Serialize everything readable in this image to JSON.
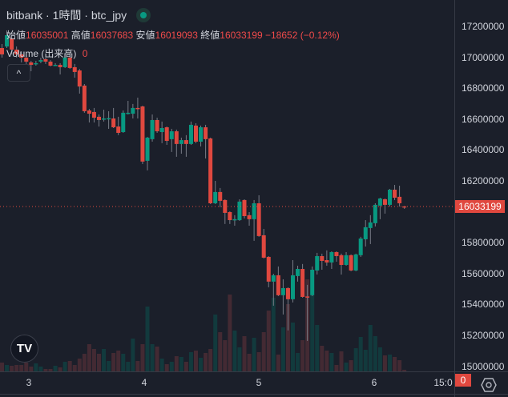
{
  "header": {
    "title": "bitbank · 1時間 · btc_jpy",
    "status_icon": "live-status-dot-icon",
    "open_label": "始値",
    "open": "16035001",
    "high_label": "高値",
    "high": "16037683",
    "low_label": "安値",
    "low": "16019093",
    "close_label": "終値",
    "close": "16033199",
    "change": "−18652 (−0.12%)",
    "volume_label": "Volume (出来高)",
    "volume_value": "0",
    "collapse_icon": "^"
  },
  "price_axis": {
    "labels": [
      "17200000",
      "17000000",
      "16800000",
      "16600000",
      "16400000",
      "16200000",
      "15800000",
      "15600000",
      "15400000",
      "15200000",
      "15000000"
    ],
    "current_price_label": "16033199",
    "volume_label": "0"
  },
  "time_axis": {
    "labels": [
      "3",
      "4",
      "5",
      "6",
      "15:0"
    ]
  },
  "logo": "TV",
  "colors": {
    "up": "#089981",
    "down": "#e0483f",
    "up_vol": "#123a3d",
    "down_vol": "#432a33",
    "bg": "#1b1f2a"
  },
  "chart_data": {
    "type": "candlestick",
    "title": "bitbank · 1時間 · btc_jpy",
    "price_unit": "thousand JPY",
    "ylim": [
      14990,
      17370
    ],
    "yticks": [
      17200,
      17000,
      16800,
      16600,
      16400,
      16200,
      16000,
      15800,
      15600,
      15400,
      15200,
      15000
    ],
    "xticks": [
      {
        "label": "3",
        "index": 5.6
      },
      {
        "label": "4",
        "index": 29.4
      },
      {
        "label": "5",
        "index": 53.1
      },
      {
        "label": "6",
        "index": 76.9
      },
      {
        "label": "15:0",
        "index": 91
      }
    ],
    "last_price": 16033.199,
    "ohlc": [
      [
        17060,
        17086,
        16998,
        17019
      ],
      [
        17070,
        17174,
        17060,
        17143
      ],
      [
        17122,
        17143,
        17019,
        17050
      ],
      [
        17050,
        17070,
        16998,
        17019
      ],
      [
        17019,
        17039,
        16967,
        16998
      ],
      [
        16998,
        17019,
        16957,
        16972
      ],
      [
        16967,
        16977,
        16910,
        16951
      ],
      [
        16957,
        16977,
        16946,
        16962
      ],
      [
        16972,
        16998,
        16962,
        16982
      ],
      [
        16988,
        16998,
        16957,
        16972
      ],
      [
        16972,
        16982,
        16941,
        16946
      ],
      [
        16946,
        16962,
        16946,
        16951
      ],
      [
        16951,
        16962,
        16889,
        16936
      ],
      [
        16936,
        17029,
        16931,
        16998
      ],
      [
        16998,
        17029,
        16925,
        16931
      ],
      [
        16936,
        16957,
        16868,
        16905
      ],
      [
        16915,
        16925,
        16765,
        16811
      ],
      [
        16817,
        16827,
        16641,
        16651
      ],
      [
        16656,
        16666,
        16578,
        16635
      ],
      [
        16646,
        16672,
        16578,
        16609
      ],
      [
        16615,
        16630,
        16552,
        16594
      ],
      [
        16599,
        16661,
        16584,
        16604
      ],
      [
        16604,
        16651,
        16537,
        16606
      ],
      [
        16604,
        16672,
        16542,
        16547
      ],
      [
        16552,
        16615,
        16496,
        16511
      ],
      [
        16516,
        16656,
        16511,
        16641
      ],
      [
        16635,
        16718,
        16630,
        16641
      ],
      [
        16635,
        16698,
        16604,
        16672
      ],
      [
        16672,
        16739,
        16604,
        16666
      ],
      [
        16682,
        16687,
        16309,
        16325
      ],
      [
        16330,
        16485,
        16268,
        16480
      ],
      [
        16470,
        16630,
        16454,
        16594
      ],
      [
        16594,
        16609,
        16511,
        16521
      ],
      [
        16516,
        16584,
        16444,
        16542
      ],
      [
        16547,
        16552,
        16433,
        16459
      ],
      [
        16470,
        16537,
        16387,
        16521
      ],
      [
        16521,
        16532,
        16356,
        16439
      ],
      [
        16439,
        16480,
        16376,
        16464
      ],
      [
        16464,
        16496,
        16356,
        16439
      ],
      [
        16439,
        16584,
        16433,
        16563
      ],
      [
        16558,
        16573,
        16444,
        16454
      ],
      [
        16454,
        16558,
        16423,
        16547
      ],
      [
        16547,
        16563,
        16345,
        16470
      ],
      [
        16475,
        16480,
        16050,
        16055
      ],
      [
        16055,
        16200,
        16050,
        16128
      ],
      [
        16128,
        16154,
        16029,
        16071
      ],
      [
        16076,
        16081,
        15921,
        15993
      ],
      [
        15998,
        16003,
        15921,
        15946
      ],
      [
        15946,
        15978,
        15910,
        15952
      ],
      [
        15946,
        16081,
        15941,
        16066
      ],
      [
        16076,
        16081,
        15957,
        15972
      ],
      [
        15978,
        15998,
        15910,
        15952
      ],
      [
        15952,
        16076,
        15812,
        16055
      ],
      [
        16055,
        16107,
        15838,
        15843
      ],
      [
        15848,
        15889,
        15698,
        15703
      ],
      [
        15708,
        15713,
        15511,
        15548
      ],
      [
        15548,
        15599,
        15392,
        15589
      ],
      [
        15589,
        15646,
        15454,
        15460
      ],
      [
        15460,
        15563,
        15335,
        15506
      ],
      [
        15506,
        15511,
        15232,
        15434
      ],
      [
        15434,
        15687,
        15413,
        15589
      ],
      [
        15584,
        15651,
        15548,
        15630
      ],
      [
        15630,
        15662,
        15444,
        15449
      ],
      [
        15452,
        15527,
        15164,
        15449
      ],
      [
        15460,
        15646,
        15454,
        15625
      ],
      [
        15620,
        15734,
        15594,
        15713
      ],
      [
        15713,
        15729,
        15625,
        15682
      ],
      [
        15687,
        15750,
        15651,
        15672
      ],
      [
        15672,
        15744,
        15630,
        15739
      ],
      [
        15739,
        15744,
        15677,
        15713
      ],
      [
        15719,
        15729,
        15594,
        15656
      ],
      [
        15656,
        15739,
        15651,
        15719
      ],
      [
        15719,
        15724,
        15615,
        15620
      ],
      [
        15620,
        15729,
        15615,
        15724
      ],
      [
        15719,
        15838,
        15708,
        15827
      ],
      [
        15822,
        15946,
        15775,
        15900
      ],
      [
        15895,
        15978,
        15791,
        15931
      ],
      [
        15926,
        16055,
        15905,
        16045
      ],
      [
        16040,
        16091,
        15952,
        16086
      ],
      [
        16081,
        16086,
        15988,
        16045
      ],
      [
        16045,
        16148,
        16034,
        16143
      ],
      [
        16143,
        16174,
        16076,
        16091
      ],
      [
        16097,
        16169,
        16034,
        16055
      ],
      [
        16035.001,
        16037.683,
        16019.093,
        16033.199
      ]
    ],
    "volume_relative": [
      11,
      8,
      7,
      8,
      8,
      11,
      6,
      10,
      6,
      3,
      3,
      7,
      5,
      12,
      13,
      8,
      16,
      22,
      34,
      28,
      22,
      28,
      13,
      23,
      26,
      22,
      12,
      41,
      13,
      34,
      81,
      34,
      31,
      16,
      9,
      12,
      19,
      18,
      12,
      24,
      26,
      17,
      23,
      28,
      71,
      49,
      39,
      96,
      51,
      30,
      44,
      22,
      42,
      24,
      49,
      76,
      92,
      21,
      55,
      84,
      61,
      23,
      39,
      115,
      95,
      58,
      32,
      26,
      23,
      8,
      25,
      11,
      14,
      29,
      43,
      27,
      58,
      44,
      30,
      20,
      21,
      18,
      14,
      2
    ]
  }
}
